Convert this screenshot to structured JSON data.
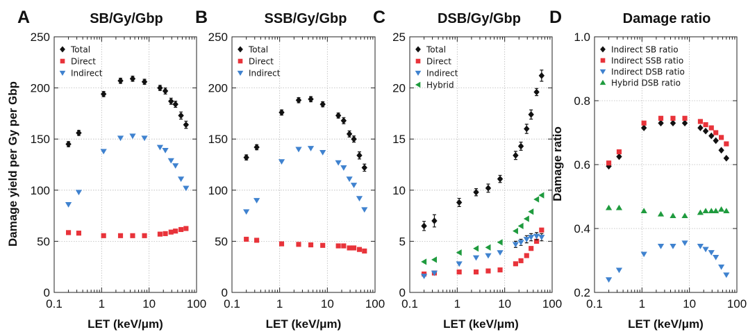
{
  "colors": {
    "total": "#111111",
    "direct": "#e8333a",
    "indirect": "#3f82cf",
    "hybrid": "#1f9b3e"
  },
  "icons": {
    "total": "diamond-marker",
    "direct": "square-marker",
    "indirect": "down-triangle-marker",
    "hybrid": "left-triangle-marker",
    "hybrid_ratio": "up-triangle-marker"
  },
  "figure": {
    "x_label": "LET (keV/μm)",
    "y_label_left": "Damage yield per Gy per Gbp",
    "y_label_right": "Damage ratio"
  },
  "chart_data": [
    {
      "panel": "A",
      "title": "SB/Gy/Gbp",
      "type": "scatter",
      "xscale": "log",
      "xlim": [
        0.1,
        100
      ],
      "xticks": [
        "0.1",
        "1",
        "10",
        "100"
      ],
      "ylim": [
        0,
        250
      ],
      "yticks": [
        "0",
        "50",
        "100",
        "150",
        "200",
        "250"
      ],
      "grid": true,
      "legend_position": "top-left",
      "x": [
        0.2,
        0.33,
        1.1,
        2.5,
        4.5,
        8,
        17,
        22,
        29,
        36,
        47,
        60
      ],
      "series": [
        {
          "name": "Total",
          "marker": "diamond",
          "color_key": "total",
          "values": [
            145,
            156,
            194,
            207,
            209,
            206,
            200,
            197,
            187,
            184,
            173,
            164
          ],
          "errors": [
            2.5,
            2.5,
            2.5,
            2.5,
            2.5,
            2.5,
            2.5,
            3,
            3,
            3,
            3.5,
            3.5
          ]
        },
        {
          "name": "Direct",
          "marker": "square",
          "color_key": "direct",
          "values": [
            58.5,
            58,
            55.5,
            55.5,
            55.5,
            55.5,
            57,
            57.5,
            59,
            60,
            61.5,
            62.5
          ]
        },
        {
          "name": "Indirect",
          "marker": "triangle-down",
          "color_key": "indirect",
          "values": [
            86,
            98,
            138,
            151,
            153,
            151,
            142,
            139,
            129,
            124,
            111,
            102
          ]
        }
      ]
    },
    {
      "panel": "B",
      "title": "SSB/Gy/Gbp",
      "type": "scatter",
      "xscale": "log",
      "xlim": [
        0.1,
        100
      ],
      "xticks": [
        "0.1",
        "1",
        "10",
        "100"
      ],
      "ylim": [
        0,
        250
      ],
      "yticks": [
        "0",
        "50",
        "100",
        "150",
        "200",
        "250"
      ],
      "grid": true,
      "legend_position": "top-left",
      "x": [
        0.2,
        0.33,
        1.1,
        2.5,
        4.5,
        8,
        17,
        22,
        29,
        36,
        47,
        60
      ],
      "series": [
        {
          "name": "Total",
          "marker": "diamond",
          "color_key": "total",
          "values": [
            132,
            142,
            176,
            188,
            189,
            184,
            173,
            168,
            155,
            150,
            134,
            122
          ],
          "errors": [
            2.5,
            2.5,
            2.5,
            2.5,
            2.5,
            2.5,
            2.5,
            3,
            3,
            3,
            3.5,
            3.5
          ]
        },
        {
          "name": "Direct",
          "marker": "square",
          "color_key": "direct",
          "values": [
            52,
            51,
            47.5,
            47,
            46.5,
            46,
            45.5,
            45.5,
            43.5,
            43.5,
            42,
            40.5
          ]
        },
        {
          "name": "Indirect",
          "marker": "triangle-down",
          "color_key": "indirect",
          "values": [
            79,
            90,
            128,
            140,
            141,
            137,
            127,
            122,
            111,
            105,
            92,
            81
          ]
        }
      ]
    },
    {
      "panel": "C",
      "title": "DSB/Gy/Gbp",
      "type": "scatter",
      "xscale": "log",
      "xlim": [
        0.1,
        100
      ],
      "xticks": [
        "0.1",
        "1",
        "10",
        "100"
      ],
      "ylim": [
        0,
        25
      ],
      "yticks": [
        "0",
        "5",
        "10",
        "15",
        "20",
        "25"
      ],
      "grid": true,
      "legend_position": "top-left",
      "x": [
        0.2,
        0.33,
        1.1,
        2.5,
        4.5,
        8,
        17,
        22,
        29,
        36,
        47,
        60
      ],
      "series": [
        {
          "name": "Total",
          "marker": "diamond",
          "color_key": "total",
          "values": [
            6.5,
            7.0,
            8.8,
            9.8,
            10.2,
            11.1,
            13.4,
            14.3,
            16.0,
            17.4,
            19.6,
            21.2
          ],
          "errors": [
            0.45,
            0.6,
            0.4,
            0.35,
            0.4,
            0.35,
            0.4,
            0.4,
            0.45,
            0.45,
            0.35,
            0.55
          ]
        },
        {
          "name": "Direct",
          "marker": "square",
          "color_key": "direct",
          "values": [
            1.8,
            1.9,
            2.0,
            2.0,
            2.1,
            2.2,
            2.8,
            3.1,
            3.6,
            4.3,
            5.0,
            6.1
          ]
        },
        {
          "name": "Indirect",
          "marker": "triangle-down",
          "color_key": "indirect",
          "values": [
            1.6,
            1.9,
            2.8,
            3.4,
            3.6,
            3.9,
            4.7,
            4.9,
            5.2,
            5.4,
            5.5,
            5.4
          ],
          "errors": [
            0,
            0,
            0,
            0,
            0,
            0,
            0.3,
            0.3,
            0.35,
            0.35,
            0.35,
            0.35
          ]
        },
        {
          "name": "Hybrid",
          "marker": "triangle-left",
          "color_key": "hybrid",
          "values": [
            3.0,
            3.2,
            3.9,
            4.3,
            4.4,
            4.9,
            6.0,
            6.5,
            7.2,
            7.9,
            9.1,
            9.5
          ]
        }
      ]
    },
    {
      "panel": "D",
      "title": "Damage ratio",
      "type": "scatter",
      "xscale": "log",
      "xlim": [
        0.1,
        100
      ],
      "xticks": [
        "0.1",
        "1",
        "10",
        "100"
      ],
      "ylim": [
        0.2,
        1.0
      ],
      "yticks": [
        "0.2",
        "0.4",
        "0.6",
        "0.8",
        "1.0"
      ],
      "grid": true,
      "legend_position": "top-left",
      "x": [
        0.2,
        0.33,
        1.1,
        2.5,
        4.5,
        8,
        17,
        22,
        29,
        36,
        47,
        60
      ],
      "series": [
        {
          "name": "Indirect SB ratio",
          "marker": "diamond",
          "color_key": "total",
          "values": [
            0.595,
            0.625,
            0.715,
            0.73,
            0.73,
            0.73,
            0.715,
            0.705,
            0.69,
            0.675,
            0.645,
            0.62
          ]
        },
        {
          "name": "Indirect SSB ratio",
          "marker": "square",
          "color_key": "direct",
          "values": [
            0.605,
            0.64,
            0.73,
            0.745,
            0.745,
            0.745,
            0.735,
            0.725,
            0.715,
            0.7,
            0.685,
            0.665
          ]
        },
        {
          "name": "Indirect DSB ratio",
          "marker": "triangle-down",
          "color_key": "indirect",
          "values": [
            0.24,
            0.27,
            0.32,
            0.345,
            0.345,
            0.355,
            0.345,
            0.335,
            0.325,
            0.31,
            0.28,
            0.255
          ]
        },
        {
          "name": "Hybrid DSB ratio",
          "marker": "triangle-up",
          "color_key": "hybrid",
          "values": [
            0.465,
            0.465,
            0.455,
            0.445,
            0.44,
            0.44,
            0.45,
            0.455,
            0.455,
            0.455,
            0.46,
            0.455
          ]
        }
      ]
    }
  ]
}
